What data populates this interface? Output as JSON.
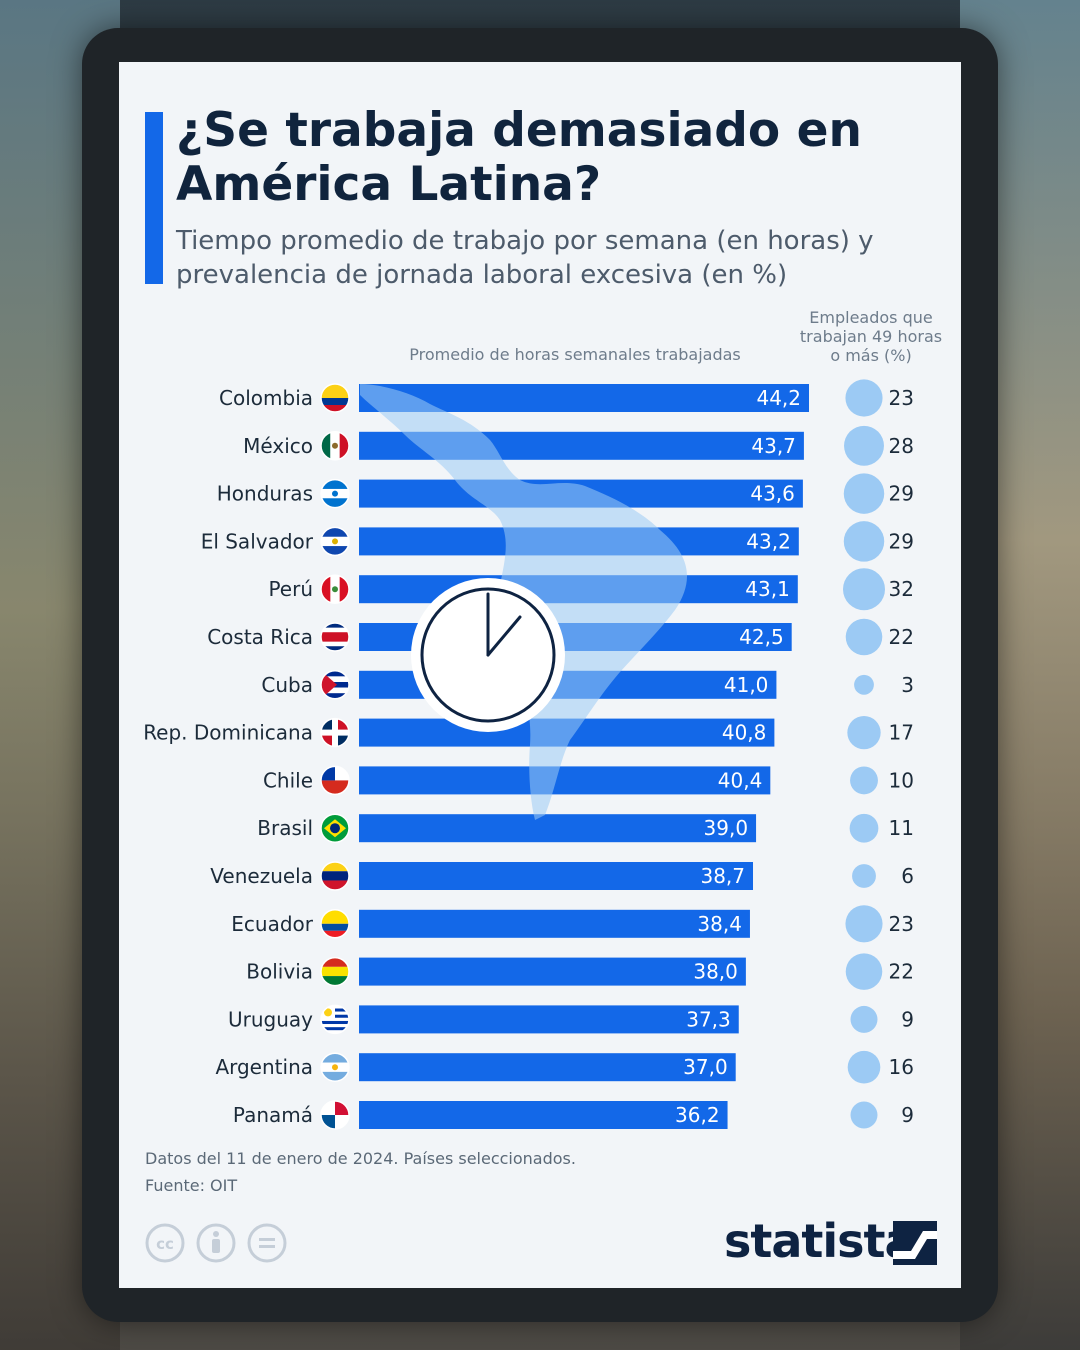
{
  "title": "¿Se trabaja demasiado en América Latina?",
  "subtitle": "Tiempo promedio de trabajo por semana (en horas) y prevalencia de jornada laboral excesiva (en %)",
  "col_head_bars": "Promedio de horas semanales trabajadas",
  "col_head_emp": "Empleados que trabajan 49 horas o más (%)",
  "note": "Datos del 11 de enero de 2024. Países seleccionados.",
  "source": "Fuente: OIT",
  "logo": "statista",
  "colors": {
    "bar": "#1368e8",
    "bubble": "#9ccaf4",
    "title": "#10243d"
  },
  "chart_data": {
    "type": "bar",
    "title": "¿Se trabaja demasiado en América Latina?",
    "orientation": "horizontal",
    "categories": [
      "Colombia",
      "México",
      "Honduras",
      "El Salvador",
      "Perú",
      "Costa Rica",
      "Cuba",
      "Rep. Dominicana",
      "Chile",
      "Brasil",
      "Venezuela",
      "Ecuador",
      "Bolivia",
      "Uruguay",
      "Argentina",
      "Panamá"
    ],
    "series": [
      {
        "name": "Promedio de horas semanales trabajadas",
        "values": [
          44.2,
          43.7,
          43.6,
          43.2,
          43.1,
          42.5,
          41.0,
          40.8,
          40.4,
          39.0,
          38.7,
          38.4,
          38.0,
          37.3,
          37.0,
          36.2
        ]
      },
      {
        "name": "Empleados que trabajan 49 horas o más (%)",
        "values": [
          23,
          28,
          29,
          29,
          32,
          22,
          3,
          17,
          10,
          11,
          6,
          23,
          22,
          9,
          16,
          9
        ]
      }
    ],
    "value_labels": [
      "44,2",
      "43,7",
      "43,6",
      "43,2",
      "43,1",
      "42,5",
      "41,0",
      "40,8",
      "40,4",
      "39,0",
      "38,7",
      "38,4",
      "38,0",
      "37,3",
      "37,0",
      "36,2"
    ],
    "xlim": [
      0,
      44.2
    ],
    "xlabel": "",
    "ylabel": ""
  },
  "flags": [
    "colombia-flag-icon",
    "mexico-flag-icon",
    "honduras-flag-icon",
    "el-salvador-flag-icon",
    "peru-flag-icon",
    "costa-rica-flag-icon",
    "cuba-flag-icon",
    "dominican-republic-flag-icon",
    "chile-flag-icon",
    "brazil-flag-icon",
    "venezuela-flag-icon",
    "ecuador-flag-icon",
    "bolivia-flag-icon",
    "uruguay-flag-icon",
    "argentina-flag-icon",
    "panama-flag-icon"
  ]
}
